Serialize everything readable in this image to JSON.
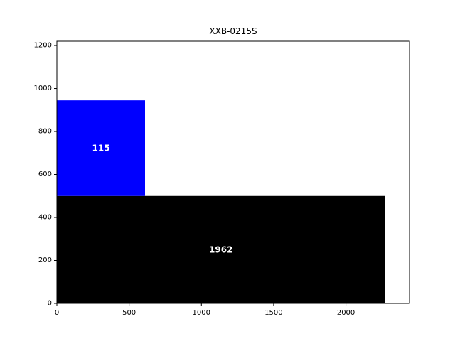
{
  "chart_data": {
    "type": "rectangles",
    "title": "XXB-0215S",
    "xlabel": "",
    "ylabel": "",
    "xlim": [
      0,
      2440
    ],
    "ylim": [
      0,
      1220
    ],
    "xticks": [
      0,
      500,
      1000,
      1500,
      2000
    ],
    "yticks": [
      0,
      200,
      400,
      600,
      800,
      1000,
      1200
    ],
    "grid": false,
    "rects": [
      {
        "label": "1962",
        "x": 0,
        "y": 0,
        "width": 2270,
        "height": 500,
        "color": "#000000"
      },
      {
        "label": "115",
        "x": 0,
        "y": 500,
        "width": 610,
        "height": 445,
        "color": "#0000ff"
      }
    ]
  }
}
